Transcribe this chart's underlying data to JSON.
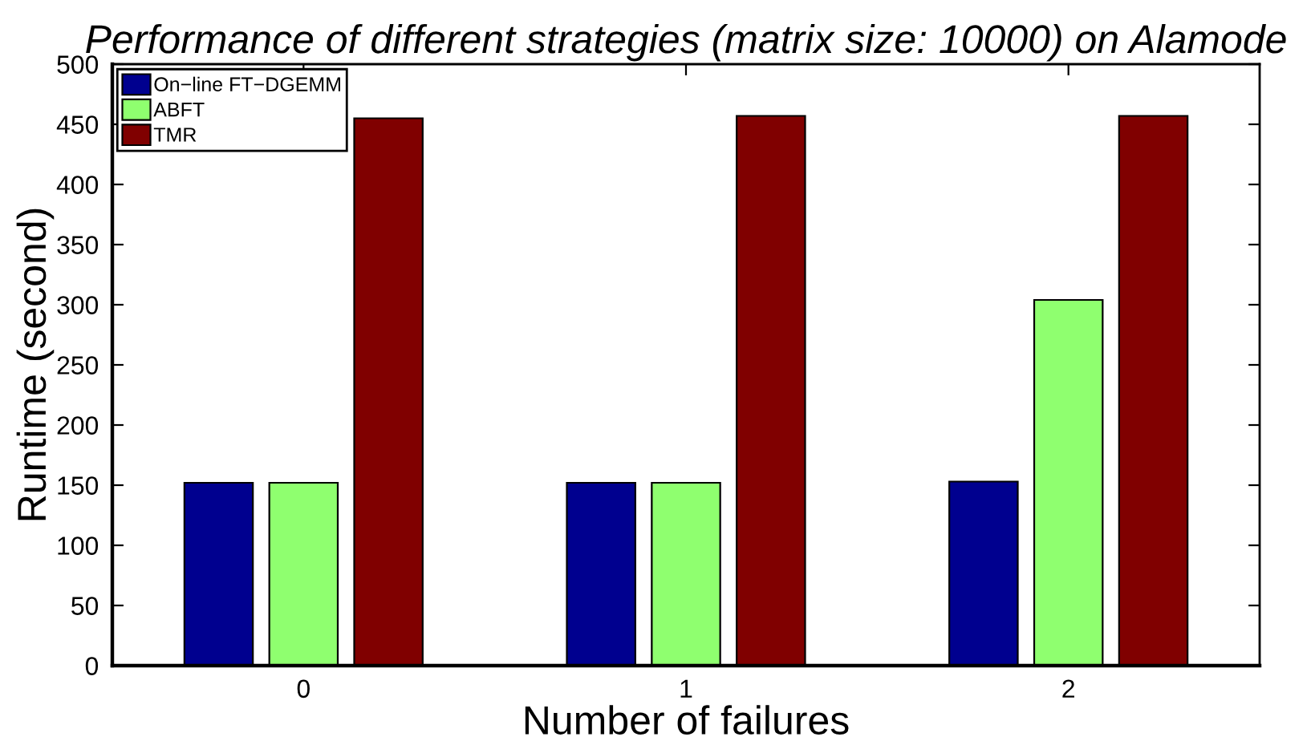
{
  "chart_data": {
    "type": "bar",
    "title": "Performance of different strategies (matrix size: 10000) on Alamode",
    "xlabel": "Number of failures",
    "ylabel": "Runtime (second)",
    "categories": [
      "0",
      "1",
      "2"
    ],
    "series": [
      {
        "name": "On−line FT−DGEMM",
        "color": "#00008f",
        "values": [
          152,
          152,
          153
        ]
      },
      {
        "name": "ABFT",
        "color": "#8fff6f",
        "values": [
          152,
          152,
          304
        ]
      },
      {
        "name": "TMR",
        "color": "#800000",
        "values": [
          455,
          457,
          457
        ]
      }
    ],
    "ylim": [
      0,
      500
    ],
    "yticks": [
      0,
      50,
      100,
      150,
      200,
      250,
      300,
      350,
      400,
      450,
      500
    ],
    "grid": false,
    "legend": "top left"
  }
}
